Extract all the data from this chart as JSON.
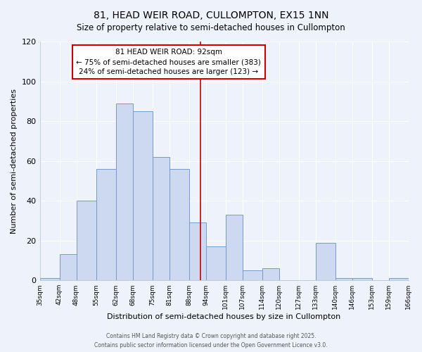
{
  "title": "81, HEAD WEIR ROAD, CULLOMPTON, EX15 1NN",
  "subtitle": "Size of property relative to semi-detached houses in Cullompton",
  "xlabel": "Distribution of semi-detached houses by size in Cullompton",
  "ylabel": "Number of semi-detached properties",
  "bin_labels": [
    "35sqm",
    "42sqm",
    "48sqm",
    "55sqm",
    "62sqm",
    "68sqm",
    "75sqm",
    "81sqm",
    "88sqm",
    "94sqm",
    "101sqm",
    "107sqm",
    "114sqm",
    "120sqm",
    "127sqm",
    "133sqm",
    "140sqm",
    "146sqm",
    "153sqm",
    "159sqm",
    "166sqm"
  ],
  "bin_edges": [
    35,
    42,
    48,
    55,
    62,
    68,
    75,
    81,
    88,
    94,
    101,
    107,
    114,
    120,
    127,
    133,
    140,
    146,
    153,
    159,
    166
  ],
  "counts": [
    1,
    13,
    40,
    56,
    89,
    85,
    62,
    56,
    29,
    17,
    33,
    5,
    6,
    0,
    0,
    19,
    1,
    1,
    0,
    1
  ],
  "bar_color": "#ccd9f0",
  "bar_edge_color": "#7799cc",
  "property_value": 92,
  "vline_color": "#cc0000",
  "annotation_box_edge_color": "#cc0000",
  "annotation_title": "81 HEAD WEIR ROAD: 92sqm",
  "annotation_line1": "← 75% of semi-detached houses are smaller (383)",
  "annotation_line2": "24% of semi-detached houses are larger (123) →",
  "ylim": [
    0,
    120
  ],
  "yticks": [
    0,
    20,
    40,
    60,
    80,
    100,
    120
  ],
  "footer1": "Contains HM Land Registry data © Crown copyright and database right 2025.",
  "footer2": "Contains public sector information licensed under the Open Government Licence v3.0.",
  "background_color": "#eef2fb"
}
